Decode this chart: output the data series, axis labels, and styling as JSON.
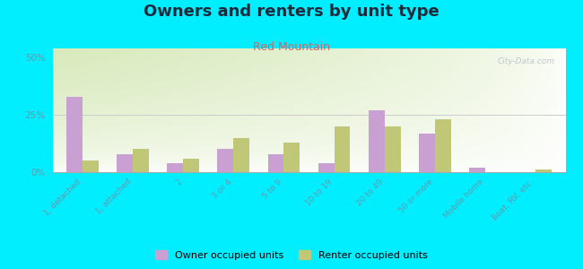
{
  "title": "Owners and renters by unit type",
  "subtitle": "Red Mountain",
  "categories": [
    "1, detached",
    "1, attached",
    "2",
    "3 or 4",
    "5 to 9",
    "10 to 19",
    "20 to 49",
    "50 or more",
    "Mobile home",
    "Boat, RV, etc."
  ],
  "owner_values": [
    33,
    8,
    4,
    10,
    8,
    4,
    27,
    17,
    2,
    0
  ],
  "renter_values": [
    5,
    10,
    6,
    15,
    13,
    20,
    20,
    23,
    0,
    1
  ],
  "owner_color": "#c8a0d2",
  "renter_color": "#c0c878",
  "yticks": [
    0,
    25,
    50
  ],
  "ylim": [
    0,
    54
  ],
  "figure_bg": "#00eeff",
  "legend_owner": "Owner occupied units",
  "legend_renter": "Renter occupied units",
  "title_fontsize": 13,
  "subtitle_fontsize": 9,
  "tick_color": "#6699aa",
  "title_color": "#1a2a3a",
  "subtitle_color": "#cc6666",
  "bar_width": 0.32,
  "watermark": "City-Data.com"
}
